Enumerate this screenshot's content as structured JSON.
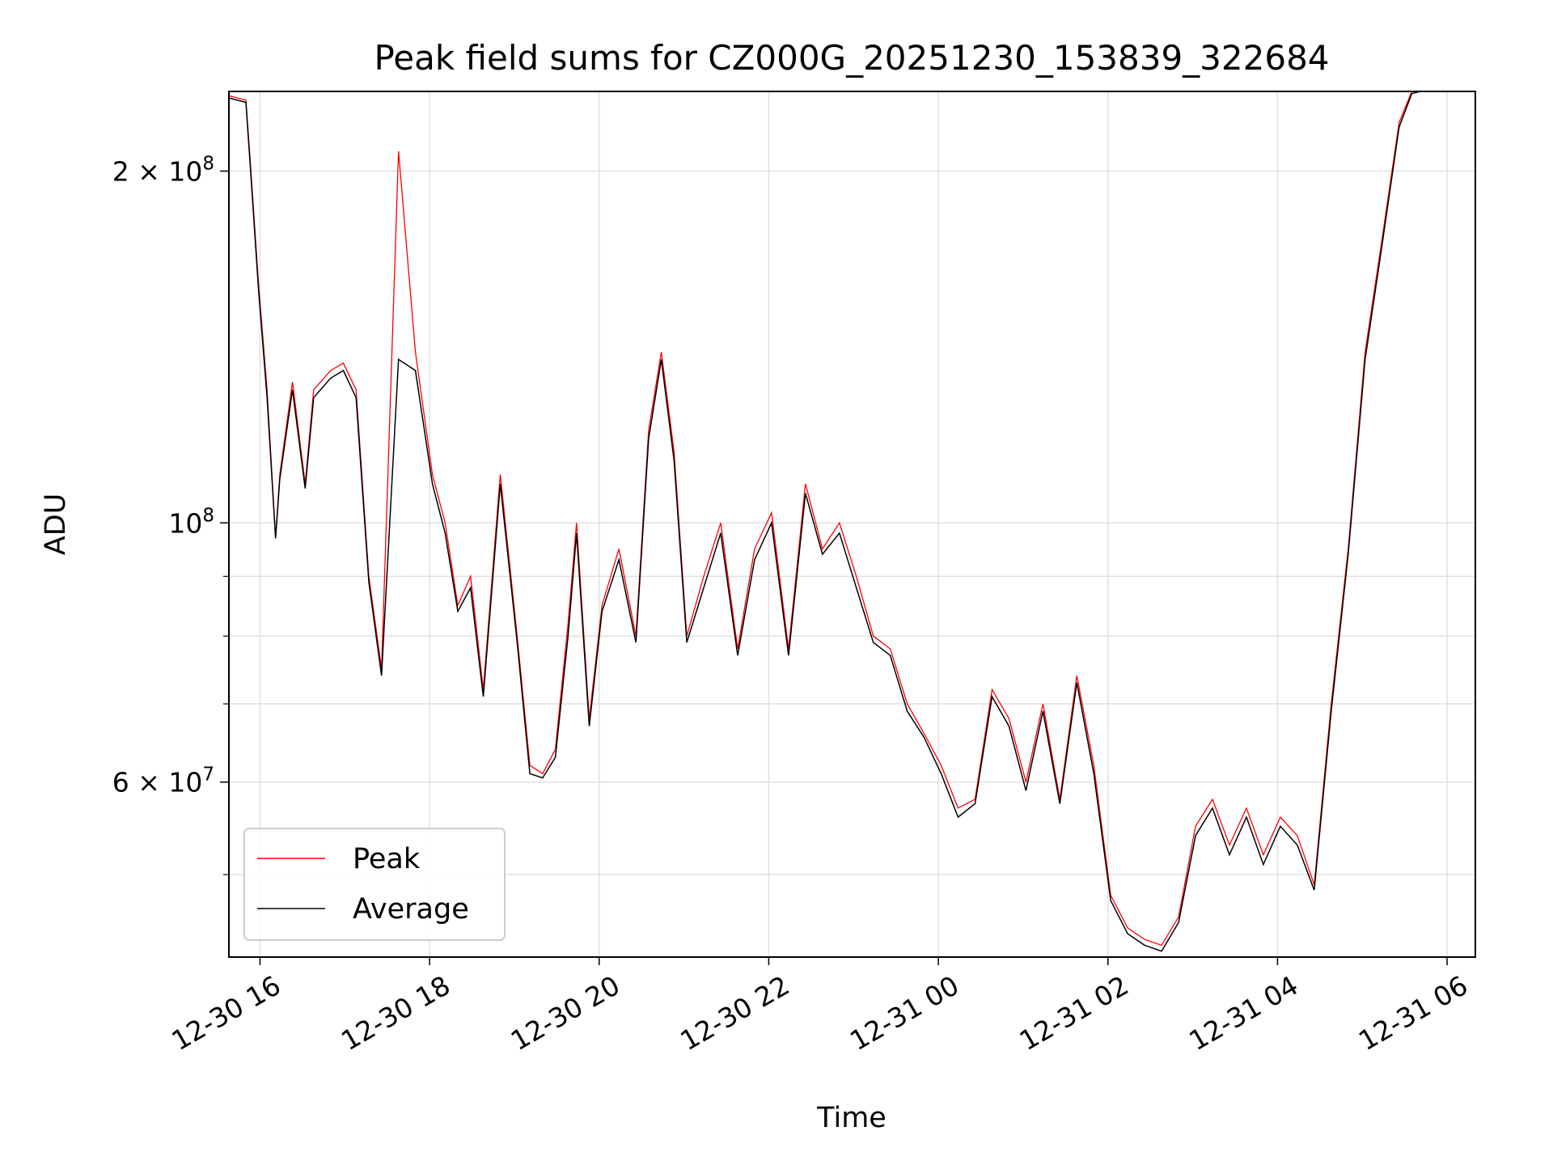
{
  "chart_data": {
    "type": "line",
    "title": "Peak field sums for CZ000G_20251230_153839_322684",
    "xlabel": "Time",
    "ylabel": "ADU",
    "yscale": "log",
    "ylim": [
      42500000,
      234000000
    ],
    "xlim": [
      "12-30 15:38",
      "12-31 06:20"
    ],
    "x_ticks": [
      "12-30 16",
      "12-30 18",
      "12-30 20",
      "12-30 22",
      "12-31 00",
      "12-31 02",
      "12-31 04",
      "12-31 06"
    ],
    "y_tick_labels": [
      {
        "value": 200000000,
        "mantissa": "2",
        "exponent": "8"
      },
      {
        "value": 100000000,
        "mantissa": "",
        "exponent": "8"
      },
      {
        "value": 60000000,
        "mantissa": "6",
        "exponent": "7"
      }
    ],
    "grid": true,
    "legend_position": "lower-left",
    "x_hours": [
      0,
      0.2,
      0.25,
      0.35,
      0.45,
      0.55,
      0.6,
      0.75,
      0.9,
      1.0,
      1.2,
      1.35,
      1.5,
      1.65,
      1.8,
      2.0,
      2.2,
      2.4,
      2.55,
      2.7,
      2.85,
      3.0,
      3.2,
      3.4,
      3.55,
      3.7,
      3.85,
      4.0,
      4.1,
      4.25,
      4.4,
      4.6,
      4.8,
      4.95,
      5.1,
      5.25,
      5.4,
      5.6,
      5.8,
      6.0,
      6.2,
      6.4,
      6.6,
      6.8,
      7.0,
      7.2,
      7.4,
      7.6,
      7.8,
      8.0,
      8.2,
      8.4,
      8.6,
      8.8,
      9.0,
      9.2,
      9.4,
      9.6,
      9.8,
      10.0,
      10.2,
      10.4,
      10.6,
      10.8,
      11.0,
      11.2,
      11.4,
      11.6,
      11.8,
      12.0,
      12.2,
      12.4,
      12.6,
      12.8,
      13.0,
      13.2,
      13.4,
      13.6,
      13.8,
      13.95,
      14.05,
      14.2,
      14.3,
      14.4,
      14.5,
      14.6,
      14.7
    ],
    "series": [
      {
        "name": "Peak",
        "color": "#ff0000",
        "values": [
          232000000,
          230000000,
          205000000,
          160000000,
          130000000,
          97000000,
          110000000,
          132000000,
          108000000,
          130000000,
          135000000,
          137000000,
          130000000,
          90000000,
          75000000,
          208000000,
          140000000,
          110000000,
          100000000,
          85000000,
          90000000,
          72000000,
          110000000,
          80000000,
          62000000,
          61000000,
          64000000,
          82000000,
          100000000,
          68000000,
          85000000,
          95000000,
          80000000,
          120000000,
          140000000,
          115000000,
          80000000,
          90000000,
          100000000,
          78000000,
          95000000,
          102000000,
          78000000,
          108000000,
          95000000,
          100000000,
          90000000,
          80000000,
          78000000,
          70000000,
          66000000,
          62000000,
          57000000,
          58000000,
          72000000,
          68000000,
          60000000,
          70000000,
          58000000,
          74000000,
          62000000,
          48000000,
          45000000,
          44000000,
          43500000,
          46000000,
          55000000,
          58000000,
          53000000,
          57000000,
          52000000,
          56000000,
          54000000,
          49000000,
          70000000,
          95000000,
          140000000,
          175000000,
          220000000,
          234000000,
          234000000,
          234000000,
          234000000,
          234000000,
          234000000,
          234000000,
          234000000
        ]
      },
      {
        "name": "Average",
        "color": "#000000",
        "values": [
          231000000,
          229000000,
          203000000,
          158000000,
          128000000,
          97000000,
          109000000,
          130000000,
          107000000,
          128000000,
          133000000,
          135000000,
          128000000,
          89000000,
          74000000,
          138000000,
          135000000,
          108000000,
          98000000,
          84000000,
          88000000,
          71000000,
          108000000,
          79000000,
          61000000,
          60500000,
          63000000,
          80000000,
          98000000,
          67000000,
          84000000,
          93000000,
          79000000,
          118000000,
          138000000,
          113000000,
          79000000,
          88000000,
          98000000,
          77000000,
          93000000,
          100000000,
          77000000,
          106000000,
          94000000,
          98000000,
          88000000,
          79000000,
          77000000,
          69000000,
          65500000,
          61000000,
          56000000,
          57500000,
          71000000,
          67000000,
          59000000,
          69000000,
          57500000,
          73000000,
          61000000,
          47500000,
          44500000,
          43500000,
          43000000,
          45500000,
          54000000,
          57000000,
          52000000,
          56000000,
          51000000,
          55000000,
          53000000,
          48500000,
          69000000,
          94000000,
          138000000,
          173000000,
          218000000,
          233000000,
          234000000,
          234000000,
          234000000,
          234000000,
          234000000,
          234000000,
          234000000
        ]
      }
    ]
  }
}
